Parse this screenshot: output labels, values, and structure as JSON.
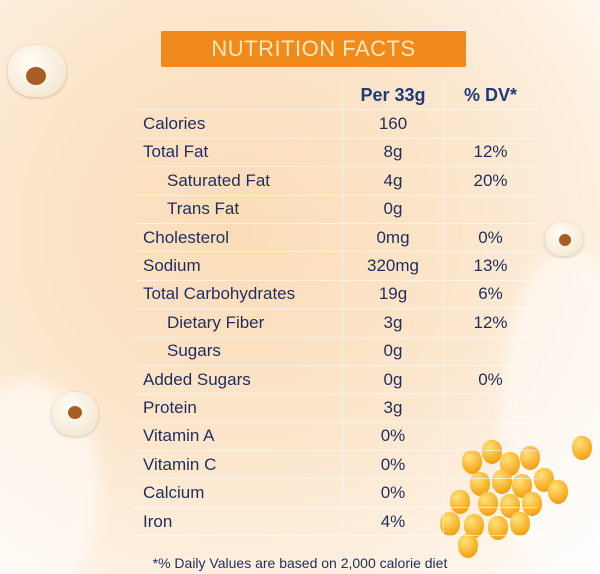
{
  "title": "NUTRITION FACTS",
  "headers": {
    "serving": "Per 33g",
    "dv": "% DV*"
  },
  "rows": [
    {
      "label": "Calories",
      "amount": "160",
      "dv": ""
    },
    {
      "label": "Total Fat",
      "amount": "8g",
      "dv": "12%"
    },
    {
      "label": "Saturated Fat",
      "amount": "4g",
      "dv": "20%",
      "indent": true
    },
    {
      "label": "Trans Fat",
      "amount": "0g",
      "dv": "",
      "indent": true
    },
    {
      "label": "Cholesterol",
      "amount": "0mg",
      "dv": "0%"
    },
    {
      "label": "Sodium",
      "amount": "320mg",
      "dv": "13%"
    },
    {
      "label": "Total Carbohydrates",
      "amount": "19g",
      "dv": "6%"
    },
    {
      "label": "Dietary Fiber",
      "amount": "3g",
      "dv": "12%",
      "indent": true
    },
    {
      "label": "Sugars",
      "amount": "0g",
      "dv": "",
      "indent": true
    },
    {
      "label": "Added Sugars",
      "amount": "0g",
      "dv": "0%"
    },
    {
      "label": "Protein",
      "amount": "3g",
      "dv": ""
    },
    {
      "label": "Vitamin A",
      "amount": "0%",
      "dv": ""
    },
    {
      "label": "Vitamin C",
      "amount": "0%",
      "dv": ""
    },
    {
      "label": "Calcium",
      "amount": "0%",
      "dv": ""
    },
    {
      "label": "Iron",
      "amount": "4%",
      "dv": ""
    }
  ],
  "footnote": "*% Daily Values are based on 2,000 calorie diet",
  "colors": {
    "banner": "#f08a1c",
    "text": "#1f2d5c"
  }
}
